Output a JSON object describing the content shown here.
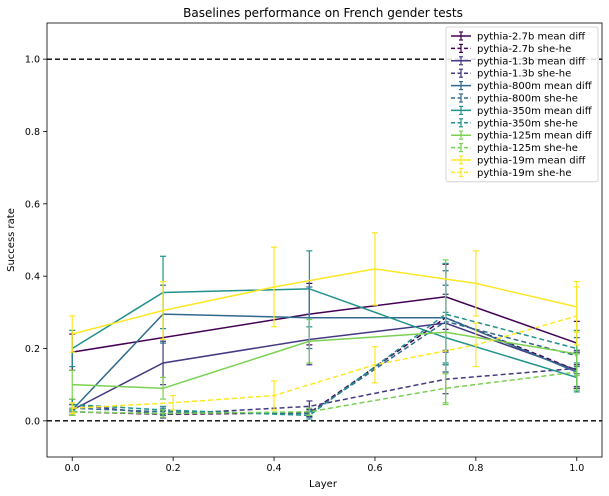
{
  "chart_data": {
    "type": "line",
    "title": "Baselines performance on French gender tests",
    "xlabel": "Layer",
    "ylabel": "Success rate",
    "xlim": [
      -0.05,
      1.05
    ],
    "ylim": [
      -0.1,
      1.1
    ],
    "xticks": [
      "0.0",
      "0.2",
      "0.4",
      "0.6",
      "0.8",
      "1.0"
    ],
    "yticks": [
      "0.0",
      "0.2",
      "0.4",
      "0.6",
      "0.8",
      "1.0"
    ],
    "grid": false,
    "legend_position": "top-right",
    "reference_lines": [
      {
        "y": 1.0,
        "style": "dashed",
        "color": "#000000"
      },
      {
        "y": 0.0,
        "style": "dashed",
        "color": "#000000"
      }
    ],
    "series": [
      {
        "name": "pythia-2.7b mean diff",
        "color": "#440154",
        "dash": false,
        "points": [
          {
            "x": 0.0,
            "y": 0.19,
            "err": 0.05
          },
          {
            "x": 0.47,
            "y": 0.295,
            "err": 0.085
          },
          {
            "x": 0.74,
            "y": 0.343,
            "err": 0.09
          },
          {
            "x": 1.0,
            "y": 0.215,
            "err": 0.06
          }
        ]
      },
      {
        "name": "pythia-2.7b she-he",
        "color": "#440154",
        "dash": true,
        "points": [
          {
            "x": 0.0,
            "y": 0.025,
            "err": 0.01
          },
          {
            "x": 0.18,
            "y": 0.018,
            "err": 0.01
          },
          {
            "x": 0.47,
            "y": 0.022,
            "err": 0.01
          },
          {
            "x": 0.74,
            "y": 0.285,
            "err": 0.15
          },
          {
            "x": 1.0,
            "y": 0.14,
            "err": 0.05
          }
        ]
      },
      {
        "name": "pythia-1.3b mean diff",
        "color": "#443983",
        "dash": false,
        "points": [
          {
            "x": 0.0,
            "y": 0.03,
            "err": 0.015
          },
          {
            "x": 0.18,
            "y": 0.16,
            "err": 0.06
          },
          {
            "x": 0.47,
            "y": 0.225,
            "err": 0.07
          },
          {
            "x": 0.74,
            "y": 0.27,
            "err": 0.08
          },
          {
            "x": 1.0,
            "y": 0.14,
            "err": 0.05
          }
        ]
      },
      {
        "name": "pythia-1.3b she-he",
        "color": "#443983",
        "dash": true,
        "points": [
          {
            "x": 0.0,
            "y": 0.045,
            "err": 0.015
          },
          {
            "x": 0.18,
            "y": 0.018,
            "err": 0.01
          },
          {
            "x": 0.47,
            "y": 0.04,
            "err": 0.015
          },
          {
            "x": 0.74,
            "y": 0.115,
            "err": 0.04
          },
          {
            "x": 1.0,
            "y": 0.145,
            "err": 0.05
          }
        ]
      },
      {
        "name": "pythia-800m mean diff",
        "color": "#31688e",
        "dash": false,
        "points": [
          {
            "x": 0.0,
            "y": 0.03,
            "err": 0.015
          },
          {
            "x": 0.18,
            "y": 0.295,
            "err": 0.08
          },
          {
            "x": 0.47,
            "y": 0.285,
            "err": 0.085
          },
          {
            "x": 0.74,
            "y": 0.285,
            "err": 0.09
          },
          {
            "x": 1.0,
            "y": 0.135,
            "err": 0.05
          }
        ]
      },
      {
        "name": "pythia-800m she-he",
        "color": "#31688e",
        "dash": true,
        "points": [
          {
            "x": 0.0,
            "y": 0.035,
            "err": 0.01
          },
          {
            "x": 0.18,
            "y": 0.025,
            "err": 0.01
          },
          {
            "x": 0.47,
            "y": 0.02,
            "err": 0.01
          },
          {
            "x": 0.74,
            "y": 0.275,
            "err": 0.14
          },
          {
            "x": 1.0,
            "y": 0.18,
            "err": 0.05
          }
        ]
      },
      {
        "name": "pythia-350m mean diff",
        "color": "#21918c",
        "dash": false,
        "points": [
          {
            "x": 0.0,
            "y": 0.2,
            "err": 0.05
          },
          {
            "x": 0.18,
            "y": 0.355,
            "err": 0.1
          },
          {
            "x": 0.47,
            "y": 0.365,
            "err": 0.105
          },
          {
            "x": 0.74,
            "y": 0.23,
            "err": 0.07
          },
          {
            "x": 1.0,
            "y": 0.12,
            "err": 0.04
          }
        ]
      },
      {
        "name": "pythia-350m she-he",
        "color": "#21918c",
        "dash": true,
        "points": [
          {
            "x": 0.0,
            "y": 0.045,
            "err": 0.015
          },
          {
            "x": 0.18,
            "y": 0.03,
            "err": 0.01
          },
          {
            "x": 0.47,
            "y": 0.015,
            "err": 0.01
          },
          {
            "x": 0.74,
            "y": 0.295,
            "err": 0.14
          },
          {
            "x": 1.0,
            "y": 0.2,
            "err": 0.05
          }
        ]
      },
      {
        "name": "pythia-125m mean diff",
        "color": "#7ad151",
        "dash": false,
        "points": [
          {
            "x": 0.0,
            "y": 0.1,
            "err": 0.04
          },
          {
            "x": 0.18,
            "y": 0.09,
            "err": 0.03
          },
          {
            "x": 0.47,
            "y": 0.22,
            "err": 0.06
          },
          {
            "x": 0.74,
            "y": 0.245,
            "err": 0.2
          },
          {
            "x": 1.0,
            "y": 0.185,
            "err": 0.06
          }
        ]
      },
      {
        "name": "pythia-125m she-he",
        "color": "#7ad151",
        "dash": true,
        "points": [
          {
            "x": 0.0,
            "y": 0.025,
            "err": 0.01
          },
          {
            "x": 0.18,
            "y": 0.02,
            "err": 0.01
          },
          {
            "x": 0.47,
            "y": 0.025,
            "err": 0.01
          },
          {
            "x": 0.74,
            "y": 0.09,
            "err": 0.04
          },
          {
            "x": 1.0,
            "y": 0.135,
            "err": 0.05
          }
        ]
      },
      {
        "name": "pythia-19m mean diff",
        "color": "#fde725",
        "dash": false,
        "points": [
          {
            "x": 0.0,
            "y": 0.24,
            "err": 0.05
          },
          {
            "x": 0.18,
            "y": 0.305,
            "err": 0.08
          },
          {
            "x": 0.4,
            "y": 0.37,
            "err": 0.11
          },
          {
            "x": 0.6,
            "y": 0.42,
            "err": 0.1
          },
          {
            "x": 0.8,
            "y": 0.38,
            "err": 0.09
          },
          {
            "x": 1.0,
            "y": 0.315,
            "err": 0.07
          }
        ]
      },
      {
        "name": "pythia-19m she-he",
        "color": "#fde725",
        "dash": true,
        "points": [
          {
            "x": 0.0,
            "y": 0.035,
            "err": 0.015
          },
          {
            "x": 0.2,
            "y": 0.05,
            "err": 0.02
          },
          {
            "x": 0.4,
            "y": 0.07,
            "err": 0.04
          },
          {
            "x": 0.6,
            "y": 0.155,
            "err": 0.05
          },
          {
            "x": 0.8,
            "y": 0.21,
            "err": 0.06
          },
          {
            "x": 1.0,
            "y": 0.29,
            "err": 0.08
          }
        ]
      }
    ]
  }
}
